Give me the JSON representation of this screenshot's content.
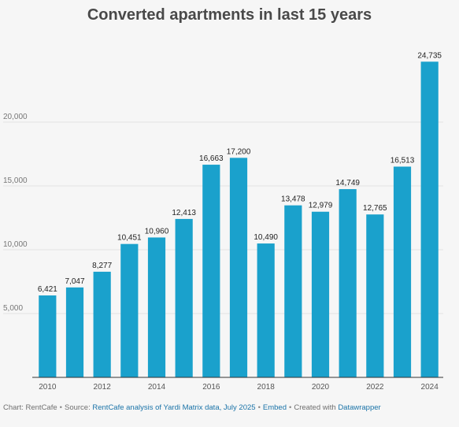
{
  "chart_data": {
    "type": "bar",
    "title": "Converted apartments in last 15 years",
    "categories": [
      "2010",
      "2011",
      "2012",
      "2013",
      "2014",
      "2015",
      "2016",
      "2017",
      "2018",
      "2019",
      "2020",
      "2021",
      "2022",
      "2023",
      "2024"
    ],
    "values": [
      6421,
      7047,
      8277,
      10451,
      10960,
      12413,
      16663,
      17200,
      10490,
      13478,
      12979,
      14749,
      12765,
      16513,
      24735
    ],
    "value_labels": [
      "6,421",
      "7,047",
      "8,277",
      "10,451",
      "10,960",
      "12,413",
      "16,663",
      "17,200",
      "10,490",
      "13,478",
      "12,979",
      "14,749",
      "12,765",
      "16,513",
      "24,735"
    ],
    "x_tick_labels": [
      "2010",
      "2012",
      "2014",
      "2016",
      "2018",
      "2020",
      "2022",
      "2024"
    ],
    "y_ticks": [
      5000,
      10000,
      15000,
      20000
    ],
    "y_tick_labels": [
      "5,000",
      "10,000",
      "15,000",
      "20,000"
    ],
    "ylim": [
      0,
      25000
    ],
    "grid": true,
    "bar_color": "#1aa1cc",
    "xlabel": "",
    "ylabel": ""
  },
  "footer": {
    "chart_credit": "Chart: RentCafe",
    "source_prefix": "Source:",
    "source_link": "RentCafe analysis of Yardi Matrix data, July 2025",
    "embed": "Embed",
    "created_with": "Created with",
    "tool": "Datawrapper"
  },
  "colors": {
    "background": "#f6f6f6",
    "link": "#1a73a8"
  }
}
